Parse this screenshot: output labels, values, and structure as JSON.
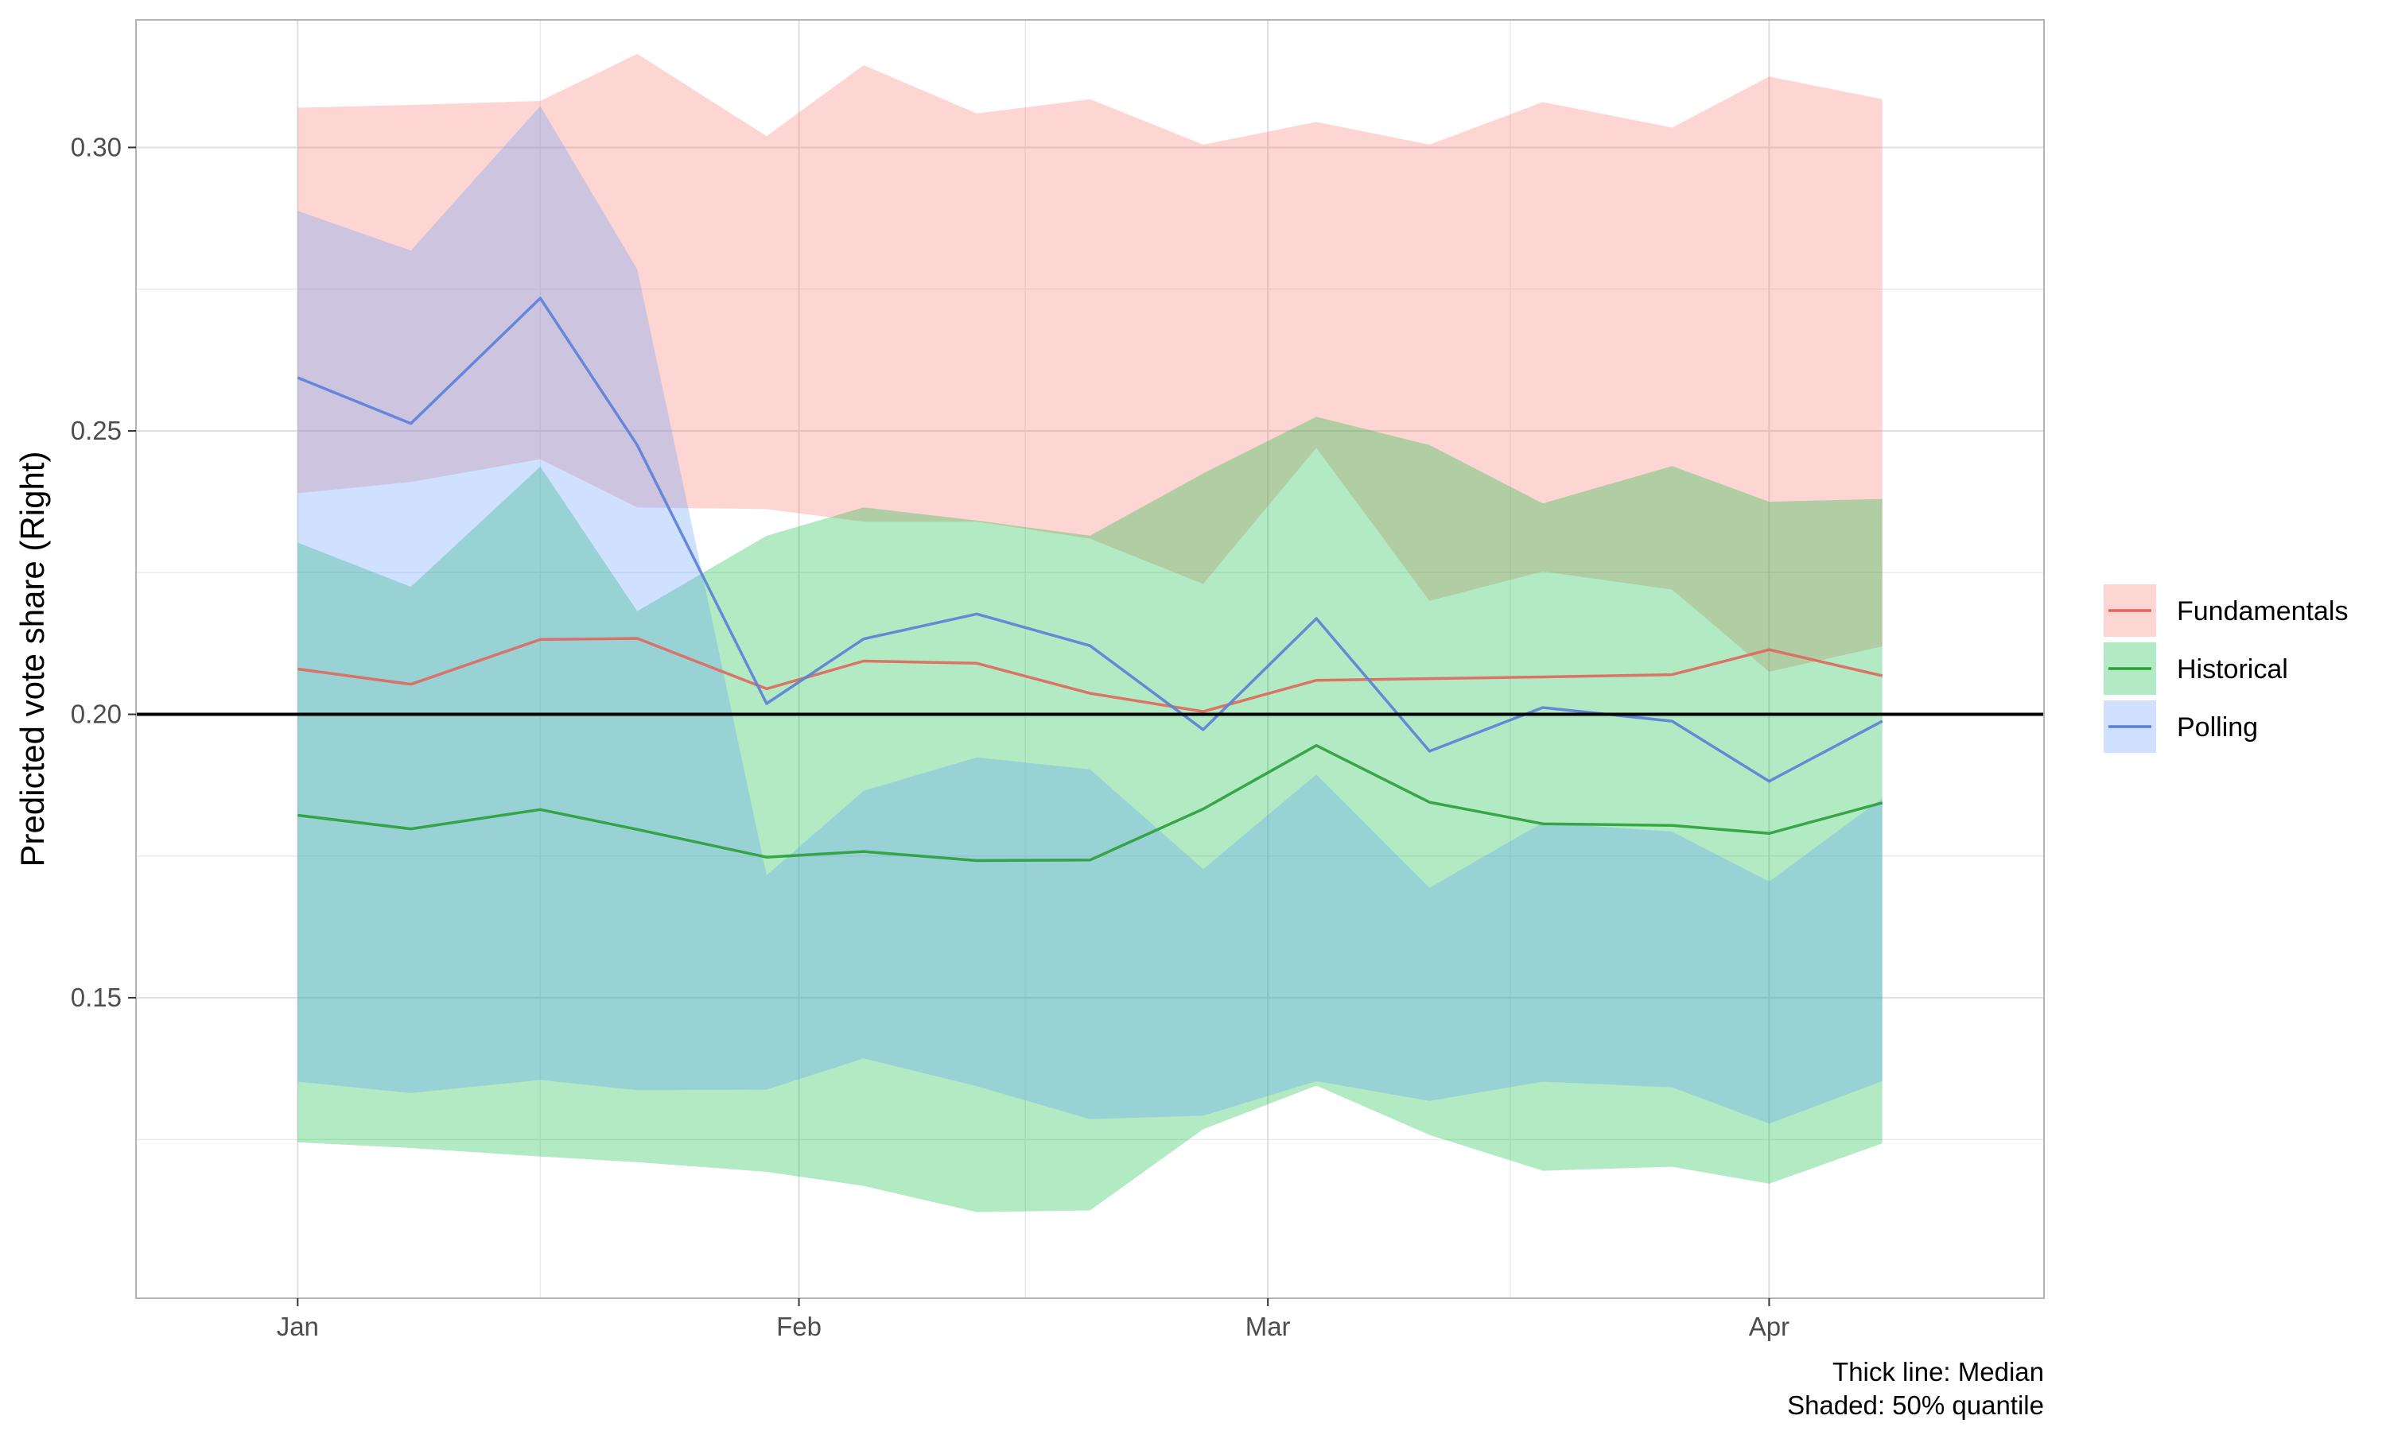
{
  "chart_data": {
    "type": "area",
    "title": "",
    "xlabel": "",
    "ylabel": "Predicted vote share (Right)",
    "x": [
      "2020-01-01",
      "2020-01-08",
      "2020-01-16",
      "2020-01-22",
      "2020-01-30",
      "2020-02-05",
      "2020-02-12",
      "2020-02-19",
      "2020-02-26",
      "2020-03-04",
      "2020-03-11",
      "2020-03-18",
      "2020-03-26",
      "2020-04-01",
      "2020-04-08"
    ],
    "x_ticks": [
      {
        "date": "2020-01-01",
        "label": "Jan"
      },
      {
        "date": "2020-02-01",
        "label": "Feb"
      },
      {
        "date": "2020-03-01",
        "label": "Mar"
      },
      {
        "date": "2020-04-01",
        "label": "Apr"
      }
    ],
    "x_minor_ticks": [
      "2020-01-16",
      "2020-02-15",
      "2020-03-16"
    ],
    "ylim": [
      0.097,
      0.3225
    ],
    "y_ticks": [
      0.15,
      0.2,
      0.25,
      0.3
    ],
    "y_tick_labels": [
      "0.15",
      "0.20",
      "0.25",
      "0.30"
    ],
    "y_minor_ticks": [
      0.125,
      0.175,
      0.225,
      0.275,
      0.325
    ],
    "reference_line": 0.2,
    "grid": true,
    "legend_position": "right",
    "series": [
      {
        "name": "Fundamentals",
        "color": "#E0675C",
        "fill": "#F8766D",
        "median": [
          0.208,
          0.2053,
          0.2132,
          0.2134,
          0.2045,
          0.2094,
          0.209,
          0.2037,
          0.2005,
          0.206,
          0.2063,
          0.2066,
          0.207,
          0.2114,
          0.2068
        ],
        "lower": [
          0.239,
          0.241,
          0.245,
          0.2365,
          0.2362,
          0.234,
          0.234,
          0.231,
          0.223,
          0.247,
          0.22,
          0.2252,
          0.222,
          0.2075,
          0.212
        ],
        "upper": [
          0.307,
          0.3075,
          0.3082,
          0.3165,
          0.302,
          0.3145,
          0.306,
          0.3085,
          0.3005,
          0.3045,
          0.3005,
          0.308,
          0.3035,
          0.3125,
          0.3085
        ]
      },
      {
        "name": "Historical",
        "color": "#2A9F39",
        "fill": "#00BA38",
        "median": [
          0.1822,
          0.1798,
          0.1832,
          0.1797,
          0.1748,
          0.1758,
          0.1742,
          0.1743,
          0.1833,
          0.1945,
          0.1845,
          0.1807,
          0.1804,
          0.179,
          0.1844
        ],
        "lower": [
          0.1245,
          0.1235,
          0.122,
          0.121,
          0.1193,
          0.1168,
          0.1122,
          0.1125,
          0.1268,
          0.1345,
          0.1258,
          0.1195,
          0.1202,
          0.1172,
          0.1243
        ],
        "upper": [
          0.2303,
          0.2225,
          0.2437,
          0.2182,
          0.2315,
          0.2365,
          0.2342,
          0.2315,
          0.2425,
          0.2525,
          0.2475,
          0.2372,
          0.2438,
          0.2375,
          0.238
        ]
      },
      {
        "name": "Polling",
        "color": "#5B7FD9",
        "fill": "#619CFF",
        "median": [
          0.2594,
          0.2513,
          0.2734,
          0.2475,
          0.2019,
          0.2133,
          0.2177,
          0.2121,
          0.1973,
          0.2169,
          0.1935,
          0.2012,
          0.1988,
          0.1882,
          0.1988
        ],
        "lower": [
          0.1352,
          0.1332,
          0.1355,
          0.1337,
          0.1338,
          0.1393,
          0.1344,
          0.1286,
          0.1292,
          0.1353,
          0.1318,
          0.1352,
          0.1342,
          0.1278,
          0.1353
        ],
        "upper": [
          0.2888,
          0.2818,
          0.3073,
          0.2785,
          0.1716,
          0.1865,
          0.1924,
          0.1903,
          0.1727,
          0.1894,
          0.1694,
          0.1809,
          0.1793,
          0.1705,
          0.1852
        ]
      }
    ],
    "caption": [
      "Thick line: Median",
      "Shaded: 50% quantile"
    ]
  }
}
